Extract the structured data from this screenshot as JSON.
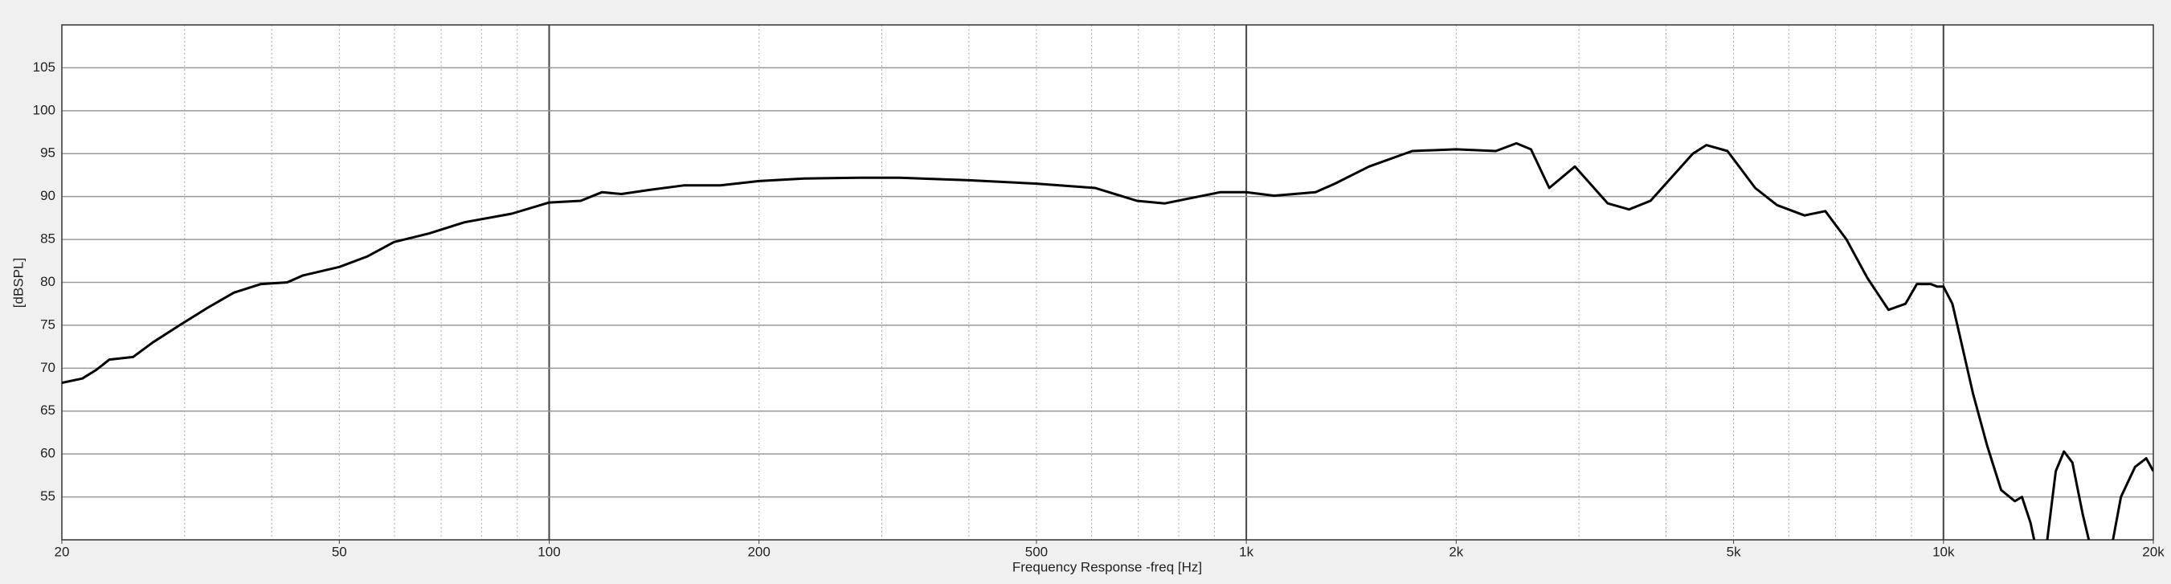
{
  "chart_data": {
    "type": "line",
    "x_label": "Frequency Response -freq [Hz]",
    "y_label": "[dBSPL]",
    "x_scale": "log",
    "grid": true,
    "color": "#000000",
    "xlim": [
      20,
      20000
    ],
    "ylim": [
      50,
      110
    ],
    "xticks": [
      20,
      50,
      100,
      200,
      500,
      {
        "value": 1000,
        "label": "1k"
      },
      {
        "value": 2000,
        "label": "2k"
      },
      {
        "value": 5000,
        "label": "5k"
      },
      {
        "value": 10000,
        "label": "10k"
      },
      {
        "value": 20000,
        "label": "20k"
      }
    ],
    "yticks": [
      55,
      60,
      65,
      70,
      75,
      80,
      85,
      90,
      95,
      100,
      105
    ],
    "x": [
      20,
      21.4,
      22.4,
      23.4,
      25.3,
      27,
      29.5,
      32.3,
      35.3,
      38.6,
      42.1,
      44.3,
      50,
      54.8,
      59.9,
      67.3,
      75.6,
      88.4,
      100,
      111,
      119,
      127,
      140,
      156,
      176,
      200,
      232,
      278,
      318,
      400,
      500,
      607,
      697,
      764,
      917,
      1000,
      1096,
      1257,
      1340,
      1500,
      1730,
      2000,
      2280,
      2440,
      2560,
      2720,
      2960,
      3300,
      3540,
      3800,
      4370,
      4570,
      4900,
      5370,
      5770,
      6320,
      6770,
      7260,
      7780,
      8340,
      8820,
      9160,
      9590,
      9800,
      10000,
      10300,
      10540,
      11030,
      11550,
      12100,
      12660,
      12960,
      13330,
      13700,
      14090,
      14490,
      14890,
      15310,
      15840,
      16380,
      17320,
      17970,
      18830,
      19540,
      20000
    ],
    "values": [
      68.3,
      68.8,
      69.8,
      71,
      71.3,
      73,
      75,
      77,
      78.8,
      79.8,
      80,
      80.8,
      81.8,
      83,
      84.7,
      85.7,
      87,
      88,
      89.3,
      89.5,
      90.5,
      90.3,
      90.8,
      91.3,
      91.3,
      91.8,
      92.1,
      92.2,
      92.2,
      91.9,
      91.5,
      91,
      89.5,
      89.2,
      90.5,
      90.5,
      90.1,
      90.5,
      91.5,
      93.5,
      95.3,
      95.5,
      95.3,
      96.2,
      95.5,
      91,
      93.5,
      89.2,
      88.5,
      89.5,
      95,
      96,
      95.3,
      91,
      89,
      87.8,
      88.3,
      85,
      80.5,
      76.8,
      77.5,
      79.8,
      79.8,
      79.5,
      79.5,
      77.5,
      74,
      67,
      61,
      55.8,
      54.5,
      55,
      52,
      47.5,
      50,
      58,
      60.3,
      59,
      53,
      48,
      48,
      55,
      58.5,
      59.5,
      58
    ]
  }
}
